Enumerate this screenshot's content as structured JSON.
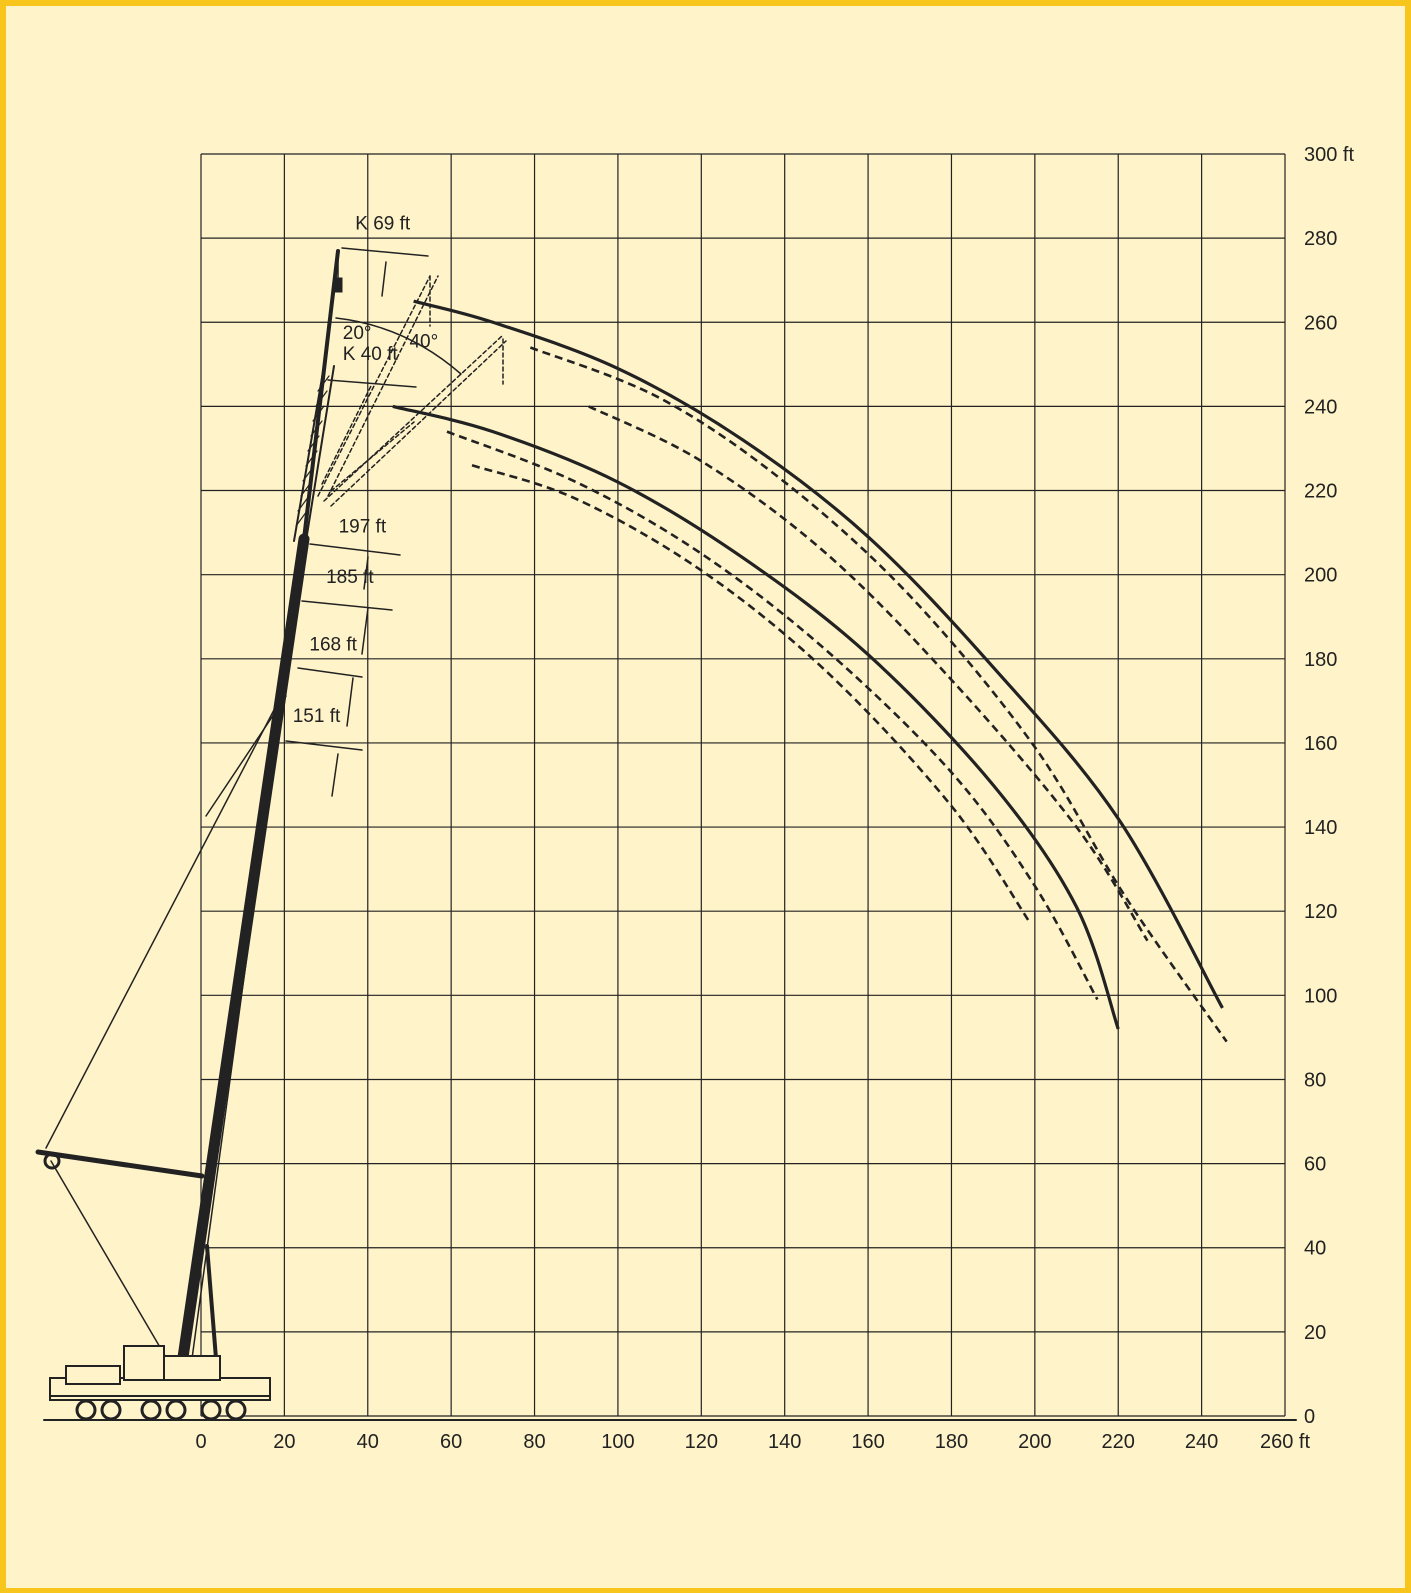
{
  "chart_data": {
    "type": "line",
    "title": "",
    "xlabel": "",
    "ylabel": "",
    "x_unit": "ft",
    "y_unit": "ft",
    "xlim": [
      0,
      260
    ],
    "ylim": [
      0,
      300
    ],
    "x_ticks": [
      "0",
      "20",
      "40",
      "60",
      "80",
      "100",
      "120",
      "140",
      "160",
      "180",
      "200",
      "220",
      "240",
      "260 ft"
    ],
    "y_ticks": [
      "0",
      "20",
      "40",
      "60",
      "80",
      "100",
      "120",
      "140",
      "160",
      "180",
      "200",
      "220",
      "240",
      "260",
      "280",
      "300 ft"
    ],
    "grid": true,
    "colors": {
      "background": "#fff3c9",
      "frame": "#f7c51c",
      "ink": "#222222"
    },
    "series": [
      {
        "style": "solid",
        "points": [
          [
            51,
            265
          ],
          [
            70,
            260
          ],
          [
            100,
            249
          ],
          [
            130,
            232
          ],
          [
            160,
            209
          ],
          [
            190,
            178
          ],
          [
            220,
            142
          ],
          [
            245,
            97
          ]
        ]
      },
      {
        "style": "dashed",
        "points": [
          [
            79,
            254
          ],
          [
            110,
            242
          ],
          [
            140,
            222
          ],
          [
            170,
            195
          ],
          [
            200,
            159
          ],
          [
            222,
            123
          ],
          [
            246,
            89
          ]
        ]
      },
      {
        "style": "dashed",
        "points": [
          [
            93,
            240
          ],
          [
            120,
            227
          ],
          [
            150,
            205
          ],
          [
            180,
            175
          ],
          [
            210,
            140
          ],
          [
            227,
            113
          ]
        ]
      },
      {
        "style": "solid",
        "points": [
          [
            46,
            240
          ],
          [
            70,
            234
          ],
          [
            100,
            222
          ],
          [
            130,
            204
          ],
          [
            160,
            181
          ],
          [
            190,
            150
          ],
          [
            210,
            121
          ],
          [
            220,
            92
          ]
        ]
      },
      {
        "style": "dashed",
        "points": [
          [
            59,
            234
          ],
          [
            90,
            222
          ],
          [
            120,
            205
          ],
          [
            150,
            182
          ],
          [
            180,
            153
          ],
          [
            200,
            126
          ],
          [
            215,
            99
          ]
        ]
      },
      {
        "style": "dashed",
        "points": [
          [
            65,
            226
          ],
          [
            90,
            218
          ],
          [
            120,
            201
          ],
          [
            150,
            177
          ],
          [
            180,
            145
          ],
          [
            199,
            117
          ]
        ]
      }
    ],
    "annotations": [
      {
        "text": "K 69 ft",
        "x": 37,
        "y": 282
      },
      {
        "text": "20°",
        "x": 34,
        "y": 256
      },
      {
        "text": "40°",
        "x": 50,
        "y": 254
      },
      {
        "text": "K 40 ft",
        "x": 34,
        "y": 251
      },
      {
        "text": "197 ft",
        "x": 33,
        "y": 210
      },
      {
        "text": "185 ft",
        "x": 30,
        "y": 198
      },
      {
        "text": "168 ft",
        "x": 26,
        "y": 182
      },
      {
        "text": "151 ft",
        "x": 22,
        "y": 165
      }
    ]
  }
}
